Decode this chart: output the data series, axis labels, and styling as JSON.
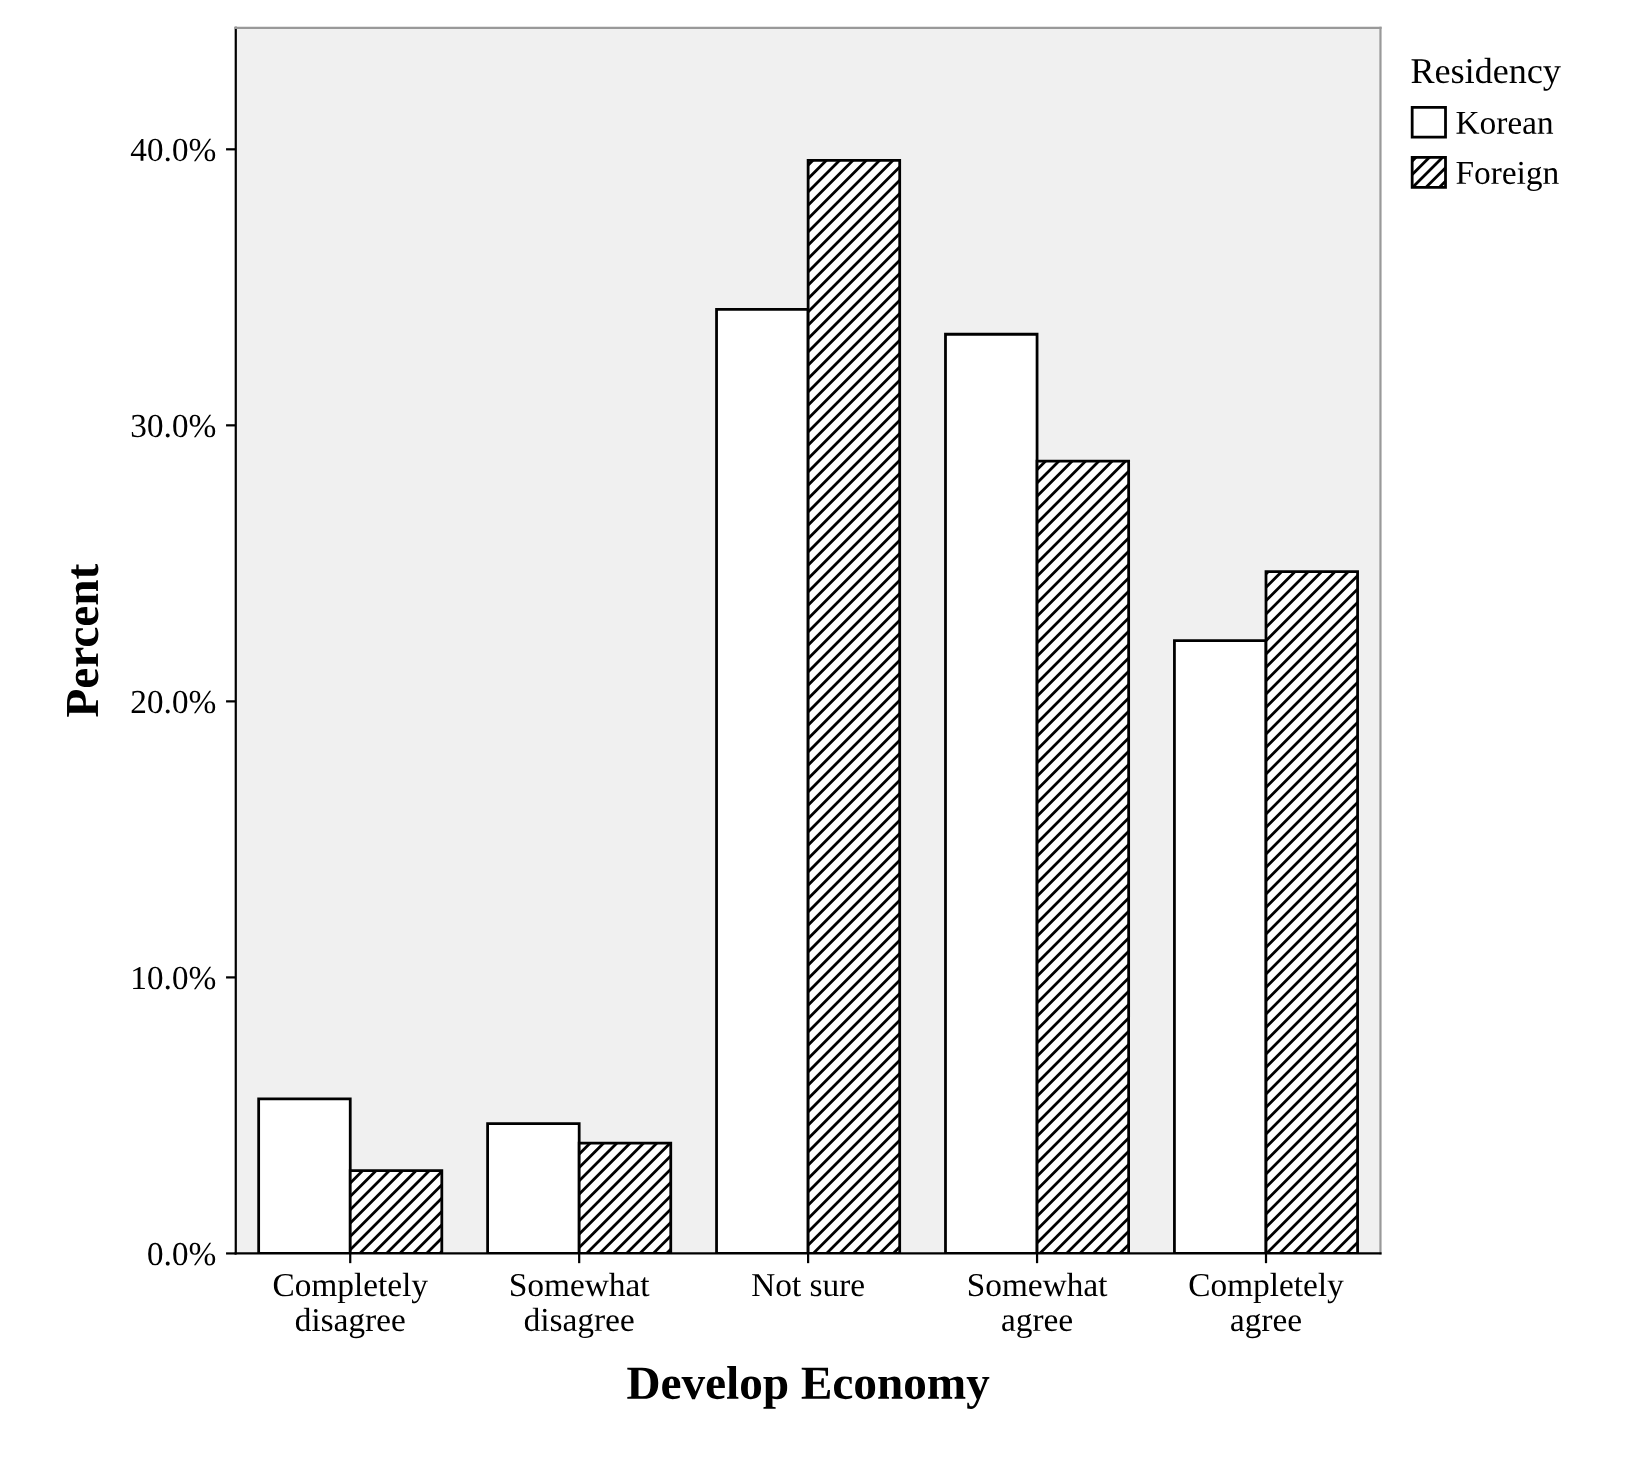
{
  "chart_data": {
    "type": "bar",
    "xlabel": "Develop Economy",
    "ylabel": "Percent",
    "legend_title": "Residency",
    "legend": "top right",
    "categories": [
      "Completely\ndisagree",
      "Somewhat\ndisagree",
      "Not sure",
      "Somewhat\nagree",
      "Completely\nagree"
    ],
    "series": [
      {
        "name": "Korean",
        "color": "#ffffff",
        "values": [
          5.6,
          4.7,
          34.2,
          33.3,
          22.2
        ]
      },
      {
        "name": "Foreign",
        "color": "#000000",
        "values": [
          3.0,
          4.0,
          39.6,
          28.7,
          24.7
        ]
      }
    ],
    "ylim": [
      0,
      44.4
    ],
    "yticks": [
      {
        "value": 0,
        "label": "0.0%"
      },
      {
        "value": 10,
        "label": "10.0%"
      },
      {
        "value": 20,
        "label": "20.0%"
      },
      {
        "value": 30,
        "label": "30.0%"
      },
      {
        "value": 40,
        "label": "40.0%"
      }
    ],
    "grid": false
  }
}
